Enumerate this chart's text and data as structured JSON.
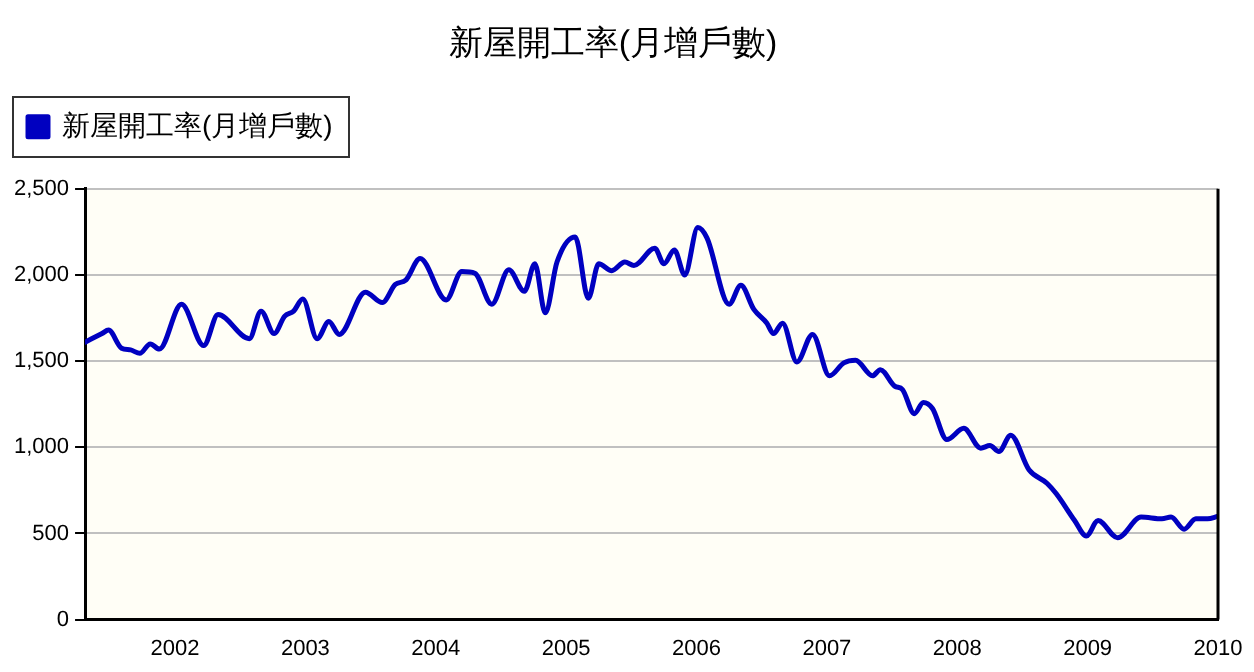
{
  "chart_data": {
    "type": "line",
    "title": "新屋開工率(月增戶數)",
    "x": [
      2001.31,
      2001.44,
      2001.49,
      2001.59,
      2001.66,
      2001.73,
      2001.81,
      2001.88,
      2002.05,
      2002.22,
      2002.33,
      2002.57,
      2002.66,
      2002.76,
      2002.84,
      2002.91,
      2002.98,
      2003.09,
      2003.18,
      2003.26,
      2003.46,
      2003.59,
      2003.69,
      2003.77,
      2003.88,
      2004.08,
      2004.2,
      2004.3,
      2004.43,
      2004.56,
      2004.68,
      2004.76,
      2004.84,
      2004.93,
      2005.07,
      2005.17,
      2005.25,
      2005.35,
      2005.45,
      2005.52,
      2005.68,
      2005.75,
      2005.83,
      2005.91,
      2006.01,
      2006.08,
      2006.25,
      2006.34,
      2006.44,
      2006.54,
      2006.59,
      2006.66,
      2006.77,
      2006.89,
      2007.02,
      2007.13,
      2007.22,
      2007.35,
      2007.41,
      2007.52,
      2007.58,
      2007.67,
      2007.74,
      2007.81,
      2007.92,
      2008.05,
      2008.18,
      2008.25,
      2008.32,
      2008.41,
      2008.55,
      2008.69,
      2008.76,
      2008.9,
      2008.99,
      2009.08,
      2009.23,
      2009.41,
      2009.57,
      2009.64,
      2009.74,
      2009.83,
      2009.92,
      2010.0
    ],
    "series": [
      {
        "name": "新屋開工率(月增戶數)",
        "color": "#0000c0",
        "values": [
          1610,
          1660,
          1680,
          1575,
          1565,
          1545,
          1600,
          1570,
          1830,
          1590,
          1770,
          1630,
          1790,
          1660,
          1760,
          1790,
          1860,
          1630,
          1730,
          1655,
          1900,
          1840,
          1945,
          1970,
          2095,
          1855,
          2020,
          2010,
          1830,
          2030,
          1905,
          2065,
          1780,
          2075,
          2220,
          1865,
          2065,
          2025,
          2075,
          2055,
          2155,
          2065,
          2145,
          2000,
          2275,
          2215,
          1830,
          1940,
          1800,
          1720,
          1660,
          1720,
          1495,
          1655,
          1415,
          1490,
          1505,
          1415,
          1450,
          1355,
          1335,
          1195,
          1260,
          1225,
          1045,
          1110,
          995,
          1010,
          975,
          1070,
          870,
          790,
          730,
          575,
          485,
          575,
          475,
          595,
          585,
          595,
          525,
          585,
          585,
          600
        ]
      }
    ],
    "xlim": [
      2001.31,
      2010
    ],
    "xticks": [
      2002,
      2003,
      2004,
      2005,
      2006,
      2007,
      2008,
      2009,
      2010
    ],
    "ylim": [
      0,
      2500
    ],
    "yticks": [
      0,
      500,
      {
        "value": 1000,
        "label": "1,000"
      },
      {
        "value": 1500,
        "label": "1,500"
      },
      {
        "value": 2000,
        "label": "2,000"
      },
      {
        "value": 2500,
        "label": "2,500"
      }
    ],
    "grid": "y",
    "legend": "top left",
    "marker": "none",
    "line_style": "solid"
  }
}
